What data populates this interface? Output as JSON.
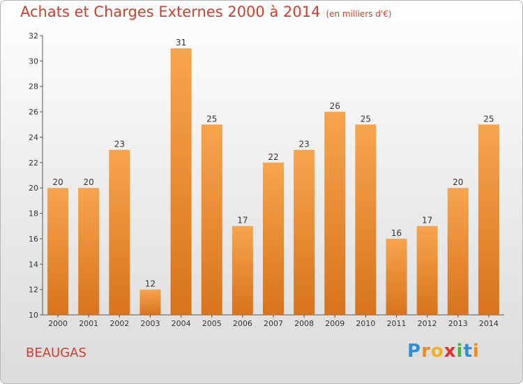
{
  "chart_data": {
    "type": "bar",
    "title": "Achats et Charges Externes 2000 à 2014",
    "subtitle": "(en milliers d'€)",
    "categories": [
      "2000",
      "2001",
      "2002",
      "2003",
      "2004",
      "2005",
      "2006",
      "2007",
      "2008",
      "2009",
      "2010",
      "2011",
      "2012",
      "2013",
      "2014"
    ],
    "values": [
      20,
      20,
      23,
      12,
      31,
      25,
      17,
      22,
      23,
      26,
      25,
      16,
      17,
      20,
      25
    ],
    "ylim": [
      10,
      32
    ],
    "yticks": [
      10,
      12,
      14,
      16,
      18,
      20,
      22,
      24,
      26,
      28,
      30,
      32
    ],
    "grid": false,
    "bar_color_top": "#f7a54d",
    "bar_color_bottom": "#d8731e",
    "title_color": "#c8412f"
  },
  "footer": {
    "commune": "BEAUGAS",
    "logo_letters": [
      {
        "ch": "P",
        "color": "#2f8fd8"
      },
      {
        "ch": "r",
        "color": "#f08a1c"
      },
      {
        "ch": "o",
        "color": "#f2b21b"
      },
      {
        "ch": "x",
        "color": "#e2302e"
      },
      {
        "ch": "i",
        "color": "#46b34a"
      },
      {
        "ch": "t",
        "color": "#2f8fd8"
      },
      {
        "ch": "i",
        "color": "#f08a1c"
      }
    ]
  }
}
